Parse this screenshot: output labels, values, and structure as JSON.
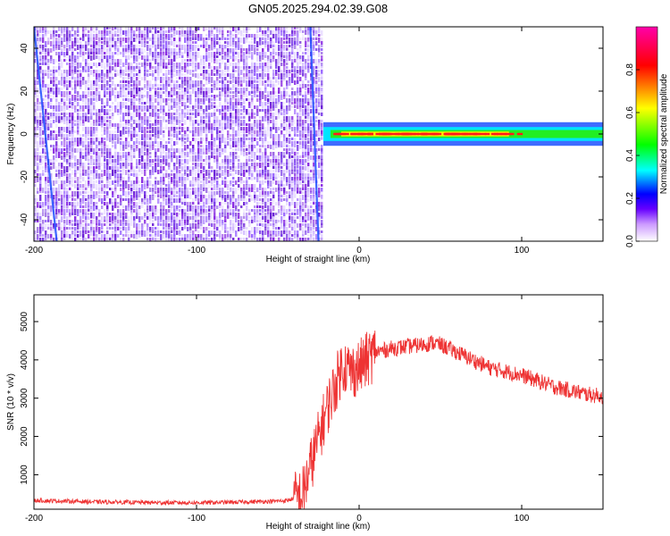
{
  "figure_title": "GN05.2025.294.02.39.G08",
  "chart_data": [
    {
      "type": "heatmap",
      "xlabel": "Height of straight line (km)",
      "ylabel": "Frequency (Hz)",
      "xlim": [
        -200,
        150
      ],
      "ylim": [
        -50,
        50
      ],
      "x_ticks": [
        -200,
        -100,
        0,
        100
      ],
      "y_ticks": [
        -40,
        -20,
        0,
        20,
        40
      ],
      "grid": false,
      "colorbar": {
        "label": "Normalized spectral amplitude",
        "range": [
          0.0,
          1.0
        ],
        "ticks": [
          0.0,
          0.2,
          0.4,
          0.6,
          0.8
        ],
        "colormap": [
          "#9966ff",
          "#6600ff",
          "#0000ff",
          "#00ffff",
          "#00ff00",
          "#ffff00",
          "#ff0000",
          "#ff00aa"
        ]
      },
      "regions": [
        {
          "x_range": [
            -200,
            -22
          ],
          "freq_range": [
            -50,
            50
          ],
          "amplitude": "0.0-0.2",
          "pattern": "broadband noise"
        },
        {
          "x_range": [
            -22,
            150
          ],
          "freq_center": 0,
          "freq_halfwidth": 2.5,
          "amplitude": "0.3-1.0",
          "pattern": "narrow carrier line"
        }
      ]
    },
    {
      "type": "line",
      "xlabel": "Height of straight line (km)",
      "ylabel": "SNR (10 * v/v)",
      "xlim": [
        -200,
        150
      ],
      "ylim": [
        100,
        5700
      ],
      "x_ticks": [
        -200,
        -100,
        0,
        100
      ],
      "y_ticks": [
        1000,
        2000,
        3000,
        4000,
        5000
      ],
      "grid": false,
      "series": [
        {
          "color": "#ee3333",
          "x": [
            -200,
            -180,
            -160,
            -140,
            -120,
            -100,
            -80,
            -60,
            -45,
            -35,
            -28,
            -20,
            -15,
            -10,
            -5,
            0,
            5,
            10,
            20,
            30,
            40,
            45,
            50,
            60,
            70,
            80,
            90,
            100,
            110,
            120,
            130,
            140,
            150
          ],
          "y": [
            330,
            310,
            290,
            280,
            270,
            270,
            280,
            300,
            320,
            450,
            1500,
            2700,
            3300,
            3900,
            3700,
            3800,
            4000,
            4200,
            4300,
            4350,
            4400,
            4450,
            4400,
            4200,
            4000,
            3800,
            3700,
            3600,
            3450,
            3300,
            3200,
            3100,
            3050
          ]
        }
      ]
    }
  ]
}
